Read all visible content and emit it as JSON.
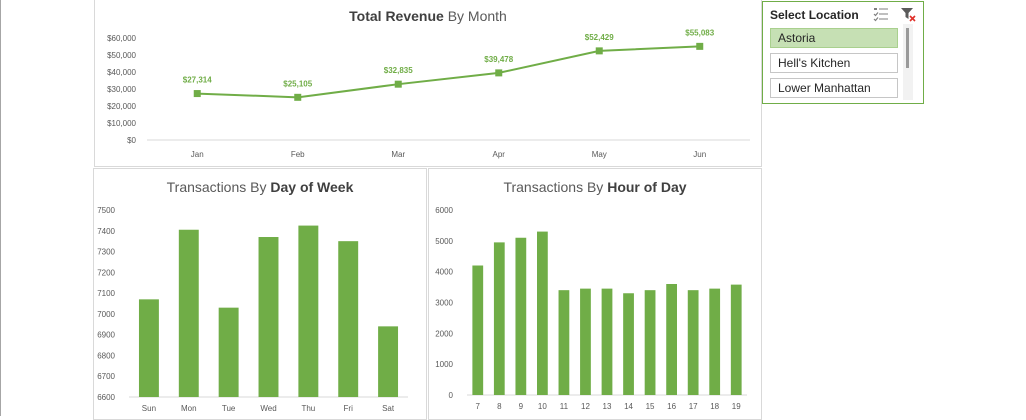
{
  "colors": {
    "accent": "#70ad47",
    "label_green": "#70ad47",
    "axis_text": "#595959",
    "selected_fill": "#c6e0b4"
  },
  "revenue_chart": {
    "title_bold": "Total Revenue",
    "title_rest": " By Month"
  },
  "dow_chart": {
    "title_rest": "Transactions By ",
    "title_bold": "Day of Week"
  },
  "hour_chart": {
    "title_rest": "Transactions By ",
    "title_bold": "Hour of Day"
  },
  "slicer": {
    "title": "Select Location",
    "multiselect_icon": "multi-select-icon",
    "clear_filter_icon": "clear-filter-icon",
    "items": [
      {
        "label": "Astoria",
        "selected": true
      },
      {
        "label": "Hell's Kitchen",
        "selected": false
      },
      {
        "label": "Lower Manhattan",
        "selected": false
      }
    ]
  },
  "chart_data": [
    {
      "type": "line",
      "title": "Total Revenue By Month",
      "categories": [
        "Jan",
        "Feb",
        "Mar",
        "Apr",
        "May",
        "Jun"
      ],
      "values": [
        27314,
        25105,
        32835,
        39478,
        52429,
        55083
      ],
      "data_labels": [
        "$27,314",
        "$25,105",
        "$32,835",
        "$39,478",
        "$52,429",
        "$55,083"
      ],
      "y_ticks": [
        "$0",
        "$10,000",
        "$20,000",
        "$30,000",
        "$40,000",
        "$50,000",
        "$60,000"
      ],
      "ylim": [
        0,
        60000
      ],
      "grid": false,
      "legend": "none"
    },
    {
      "type": "bar",
      "title": "Transactions By Day of Week",
      "categories": [
        "Sun",
        "Mon",
        "Tue",
        "Wed",
        "Thu",
        "Fri",
        "Sat"
      ],
      "values": [
        7070,
        7405,
        7030,
        7370,
        7425,
        7350,
        6940
      ],
      "y_ticks": [
        "6600",
        "6700",
        "6800",
        "6900",
        "7000",
        "7100",
        "7200",
        "7300",
        "7400",
        "7500"
      ],
      "ylim": [
        6600,
        7500
      ],
      "grid": false,
      "legend": "none"
    },
    {
      "type": "bar",
      "title": "Transactions By Hour of Day",
      "categories": [
        "7",
        "8",
        "9",
        "10",
        "11",
        "12",
        "13",
        "14",
        "15",
        "16",
        "17",
        "18",
        "19"
      ],
      "values": [
        4200,
        4950,
        5100,
        5300,
        3400,
        3450,
        3450,
        3300,
        3400,
        3600,
        3400,
        3450,
        3580
      ],
      "y_ticks": [
        "0",
        "1000",
        "2000",
        "3000",
        "4000",
        "5000",
        "6000"
      ],
      "ylim": [
        0,
        6000
      ],
      "grid": false,
      "legend": "none"
    }
  ]
}
